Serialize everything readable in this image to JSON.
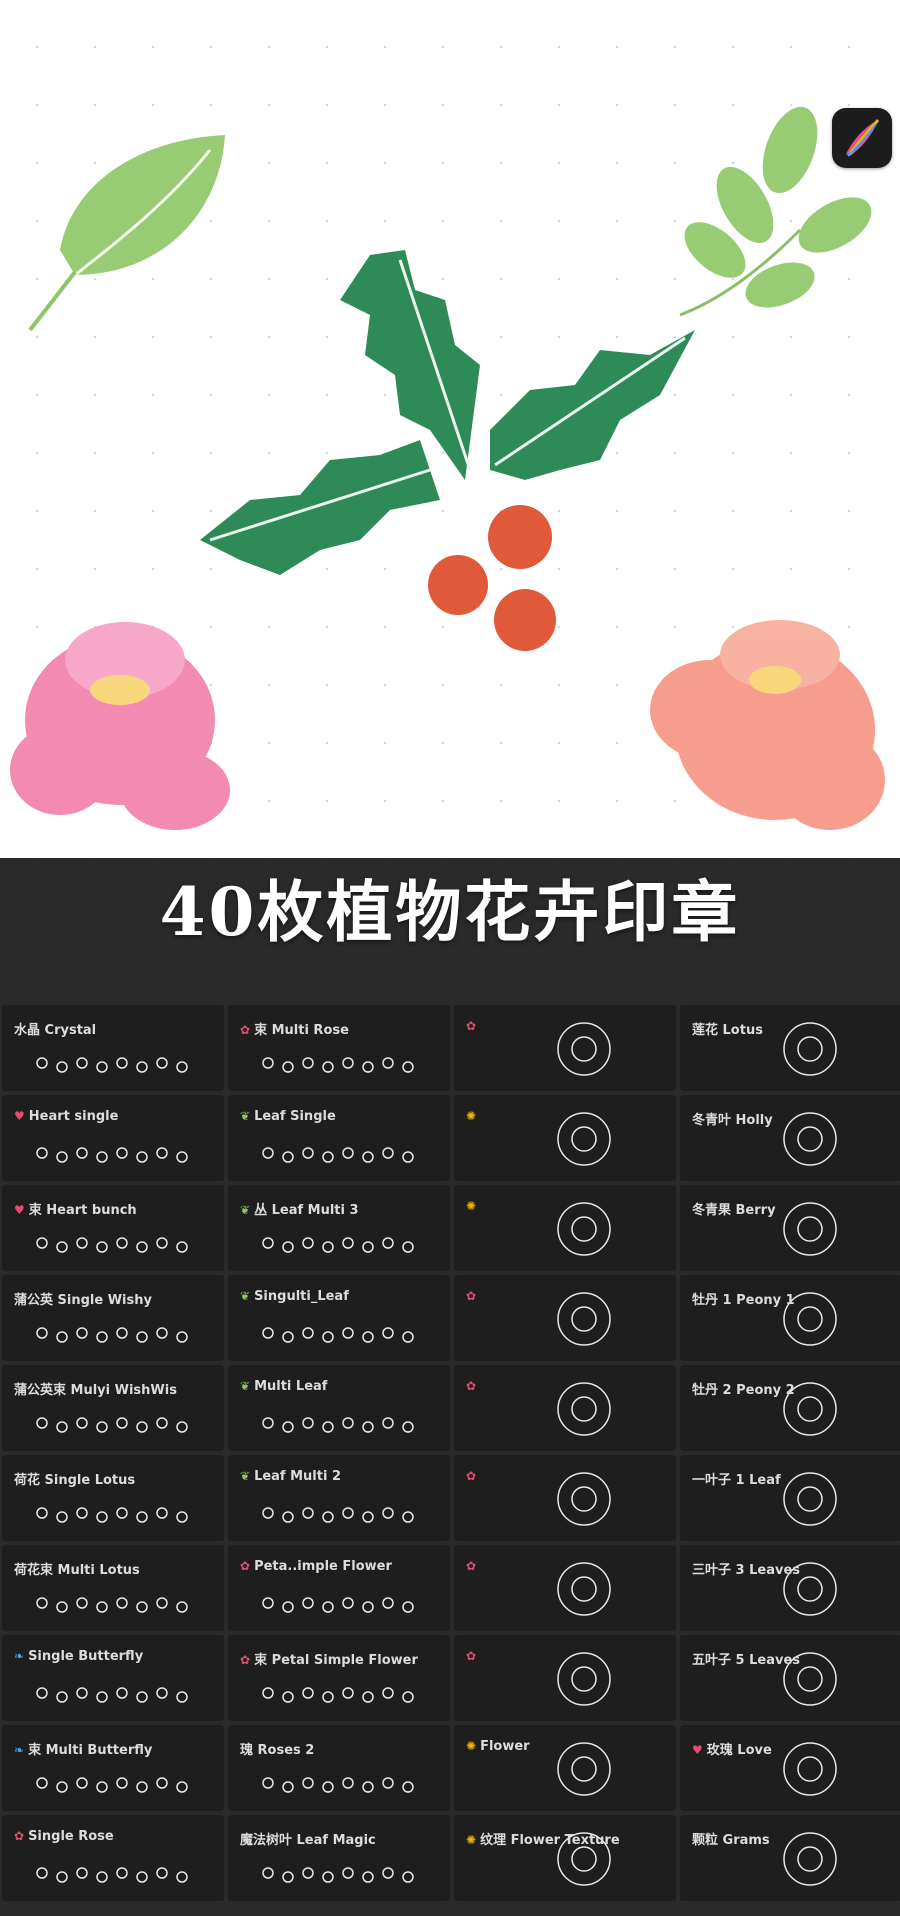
{
  "title": "40枚植物花卉印章",
  "colors": {
    "leaf_green": "#8cc765",
    "holly_green": "#2e8b57",
    "berry_red": "#e05a3a",
    "peony_pink": "#f27aa8",
    "peony_coral": "#f5907f",
    "dark_bg": "#2a2a2a"
  },
  "brushes": [
    {
      "label": "水晶 Crystal",
      "icon": ""
    },
    {
      "label": "束 Multi Rose",
      "icon": "flower-emoji"
    },
    {
      "label": "",
      "icon": "flower-emoji"
    },
    {
      "label": "莲花 Lotus",
      "icon": ""
    },
    {
      "label": "Heart single",
      "icon": "heart-emoji"
    },
    {
      "label": "Leaf Single",
      "icon": "leaf-emoji"
    },
    {
      "label": "",
      "icon": "sunflower-emoji"
    },
    {
      "label": "冬青叶 Holly",
      "icon": ""
    },
    {
      "label": "束 Heart bunch",
      "icon": "heart-emoji"
    },
    {
      "label": "丛 Leaf Multi 3",
      "icon": "leaf-emoji"
    },
    {
      "label": "",
      "icon": "sunflower-emoji"
    },
    {
      "label": "冬青果 Berry",
      "icon": ""
    },
    {
      "label": "蒲公英 Single Wishy",
      "icon": ""
    },
    {
      "label": "Singulti_Leaf",
      "icon": "leaf-emoji"
    },
    {
      "label": "",
      "icon": "flower-emoji"
    },
    {
      "label": "牡丹 1 Peony 1",
      "icon": ""
    },
    {
      "label": "蒲公英束 Mulyi WishWis",
      "icon": ""
    },
    {
      "label": "Multi Leaf",
      "icon": "leaf-emoji"
    },
    {
      "label": "",
      "icon": "flower-emoji"
    },
    {
      "label": "牡丹 2 Peony 2",
      "icon": ""
    },
    {
      "label": "荷花 Single Lotus",
      "icon": ""
    },
    {
      "label": "Leaf Multi 2",
      "icon": "leaf-emoji"
    },
    {
      "label": "",
      "icon": "flower-emoji"
    },
    {
      "label": "一叶子 1 Leaf",
      "icon": ""
    },
    {
      "label": "荷花束 Multi Lotus",
      "icon": ""
    },
    {
      "label": "Peta..imple Flower",
      "icon": "flower-emoji"
    },
    {
      "label": "",
      "icon": "flower-emoji"
    },
    {
      "label": "三叶子 3 Leaves",
      "icon": ""
    },
    {
      "label": "Single Butterfly",
      "icon": "butterfly-emoji"
    },
    {
      "label": "束 Petal Simple Flower",
      "icon": "flower-emoji"
    },
    {
      "label": "",
      "icon": "flower-emoji"
    },
    {
      "label": "五叶子 5 Leaves",
      "icon": ""
    },
    {
      "label": "束 Multi Butterfly",
      "icon": "butterfly-emoji"
    },
    {
      "label": "瑰 Roses 2",
      "icon": ""
    },
    {
      "label": "Flower",
      "icon": "sunflower-emoji"
    },
    {
      "label": "玫瑰 Love",
      "icon": "heart-emoji"
    },
    {
      "label": "Single Rose",
      "icon": "flower-emoji"
    },
    {
      "label": "魔法树叶 Leaf Magic",
      "icon": ""
    },
    {
      "label": "纹理 Flower Texture",
      "icon": "sunflower-emoji"
    },
    {
      "label": "颗粒 Grams",
      "icon": ""
    }
  ]
}
